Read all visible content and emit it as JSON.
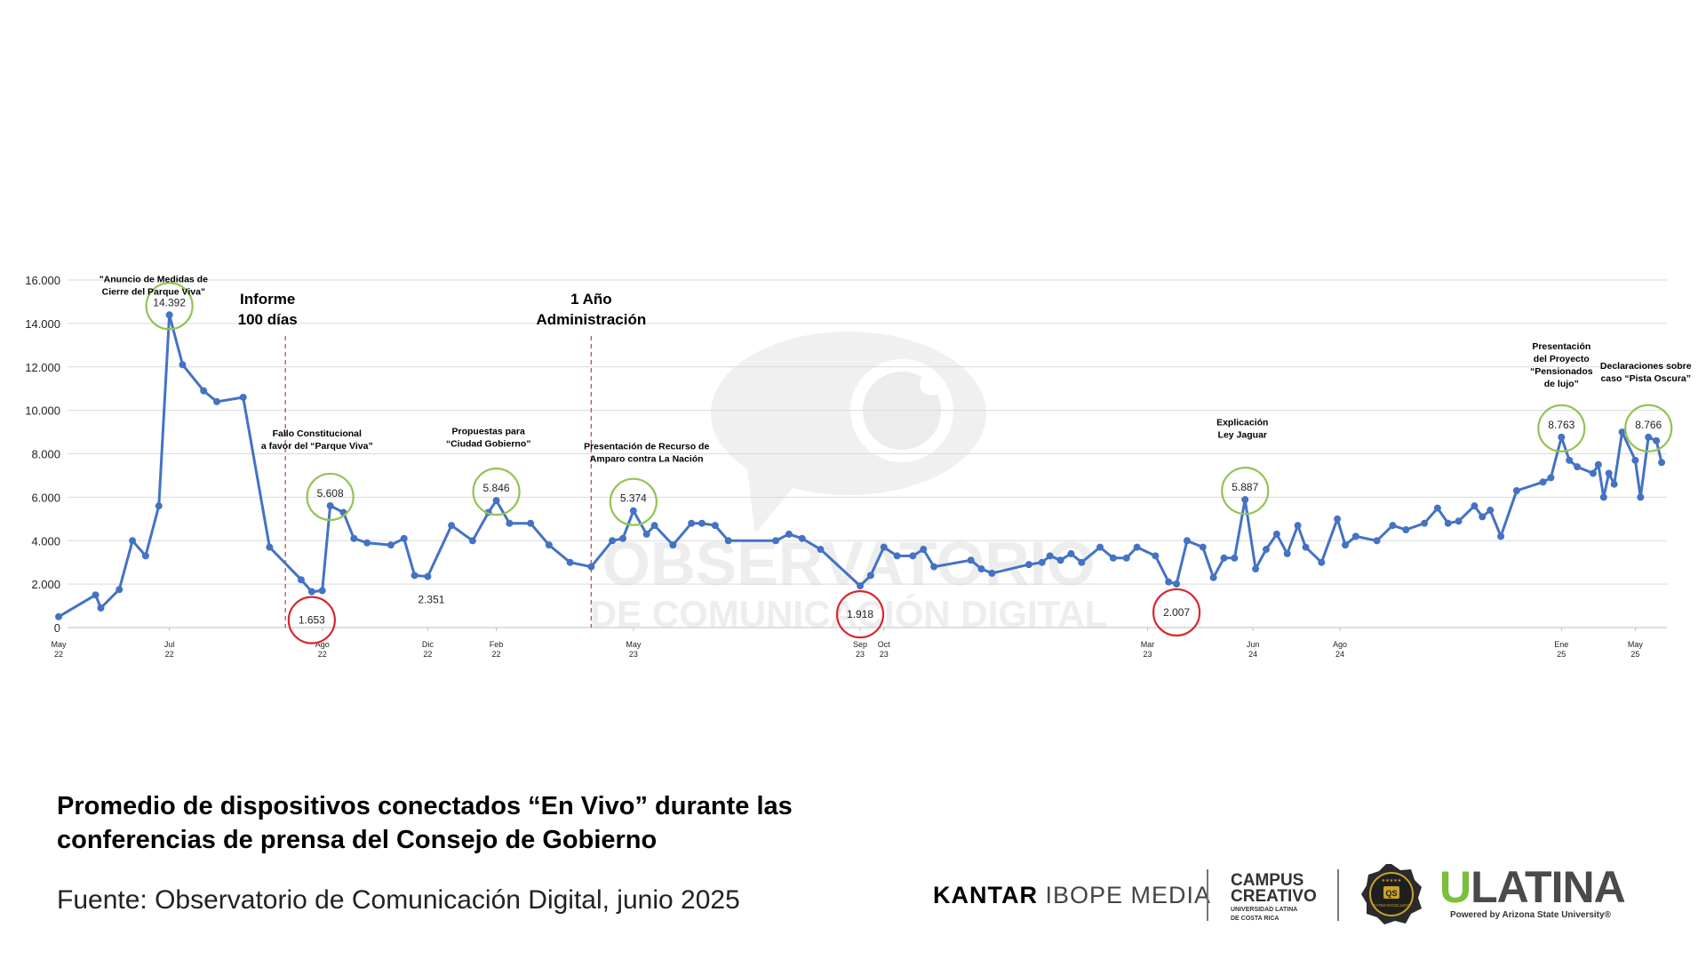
{
  "chart_data": {
    "type": "line",
    "y_ticks": [
      "0",
      "2.000",
      "4.000",
      "6.000",
      "8.000",
      "10.000",
      "12.000",
      "14.000",
      "16.000"
    ],
    "ylim": [
      0,
      16000
    ],
    "grid": true,
    "line_color": "#4472c4",
    "series": [
      {
        "values": [
          [
            0,
            500
          ],
          [
            1.4,
            1500
          ],
          [
            1.6,
            900
          ],
          [
            2.3,
            1750
          ],
          [
            2.8,
            4000
          ],
          [
            3.3,
            3300
          ],
          [
            3.8,
            5600
          ],
          [
            4.2,
            14392
          ],
          [
            4.7,
            12100
          ],
          [
            5.5,
            10900
          ],
          [
            6.0,
            10400
          ],
          [
            7.0,
            10600
          ],
          [
            8.0,
            3700
          ],
          [
            9.2,
            2200
          ],
          [
            9.6,
            1653
          ],
          [
            10.0,
            1700
          ],
          [
            10.3,
            5608
          ],
          [
            10.8,
            5300
          ],
          [
            11.2,
            4100
          ],
          [
            11.7,
            3900
          ],
          [
            12.6,
            3800
          ],
          [
            13.1,
            4100
          ],
          [
            13.5,
            2400
          ],
          [
            14.0,
            2351
          ],
          [
            14.9,
            4700
          ],
          [
            15.7,
            4000
          ],
          [
            16.3,
            5300
          ],
          [
            16.6,
            5846
          ],
          [
            17.1,
            4800
          ],
          [
            17.9,
            4800
          ],
          [
            18.6,
            3800
          ],
          [
            19.4,
            3000
          ],
          [
            20.2,
            2800
          ],
          [
            21.0,
            4000
          ],
          [
            21.4,
            4100
          ],
          [
            21.8,
            5374
          ],
          [
            22.3,
            4300
          ],
          [
            22.6,
            4700
          ],
          [
            23.3,
            3800
          ],
          [
            24.0,
            4800
          ],
          [
            24.4,
            4800
          ],
          [
            24.9,
            4700
          ],
          [
            25.4,
            4000
          ],
          [
            27.2,
            4000
          ],
          [
            27.7,
            4300
          ],
          [
            28.2,
            4100
          ],
          [
            28.9,
            3600
          ],
          [
            30.4,
            1918
          ],
          [
            30.8,
            2400
          ],
          [
            31.3,
            3700
          ],
          [
            31.8,
            3300
          ],
          [
            32.4,
            3300
          ],
          [
            32.8,
            3600
          ],
          [
            33.2,
            2800
          ],
          [
            34.6,
            3100
          ],
          [
            35.0,
            2700
          ],
          [
            35.4,
            2500
          ],
          [
            36.8,
            2900
          ],
          [
            37.3,
            3000
          ],
          [
            37.6,
            3300
          ],
          [
            38.0,
            3100
          ],
          [
            38.4,
            3400
          ],
          [
            38.8,
            3000
          ],
          [
            39.5,
            3700
          ],
          [
            40.0,
            3200
          ],
          [
            40.5,
            3200
          ],
          [
            40.9,
            3700
          ],
          [
            41.6,
            3300
          ],
          [
            42.1,
            2100
          ],
          [
            42.4,
            2007
          ],
          [
            42.8,
            4000
          ],
          [
            43.4,
            3700
          ],
          [
            43.8,
            2300
          ],
          [
            44.2,
            3200
          ],
          [
            44.6,
            3200
          ],
          [
            45.0,
            5887
          ],
          [
            45.4,
            2700
          ],
          [
            45.8,
            3600
          ],
          [
            46.2,
            4300
          ],
          [
            46.6,
            3400
          ],
          [
            47.0,
            4700
          ],
          [
            47.3,
            3700
          ],
          [
            47.9,
            3000
          ],
          [
            48.5,
            5000
          ],
          [
            48.8,
            3800
          ],
          [
            49.2,
            4200
          ],
          [
            50.0,
            4000
          ],
          [
            50.6,
            4700
          ],
          [
            51.1,
            4500
          ],
          [
            51.8,
            4800
          ],
          [
            52.3,
            5500
          ],
          [
            52.7,
            4800
          ],
          [
            53.1,
            4900
          ],
          [
            53.7,
            5600
          ],
          [
            54.0,
            5100
          ],
          [
            54.3,
            5400
          ],
          [
            54.7,
            4200
          ],
          [
            55.3,
            6300
          ],
          [
            56.3,
            6700
          ],
          [
            56.6,
            6900
          ],
          [
            57.0,
            8763
          ],
          [
            57.3,
            7700
          ],
          [
            57.6,
            7400
          ],
          [
            58.2,
            7100
          ],
          [
            58.4,
            7500
          ],
          [
            58.6,
            6000
          ],
          [
            58.8,
            7100
          ],
          [
            59.0,
            6600
          ],
          [
            59.3,
            9000
          ],
          [
            59.8,
            7700
          ],
          [
            60.0,
            6000
          ],
          [
            60.3,
            8766
          ],
          [
            60.6,
            8600
          ],
          [
            60.8,
            7600
          ]
        ]
      }
    ],
    "x_ticks": [
      {
        "pos": 0,
        "month": "May",
        "year": "22"
      },
      {
        "pos": 4.2,
        "month": "Jul",
        "year": "22"
      },
      {
        "pos": 10.0,
        "month": "Ago",
        "year": "22"
      },
      {
        "pos": 14.0,
        "month": "Dic",
        "year": "22"
      },
      {
        "pos": 16.6,
        "month": "Feb",
        "year": "22"
      },
      {
        "pos": 21.8,
        "month": "May",
        "year": "23"
      },
      {
        "pos": 30.4,
        "month": "Sep",
        "year": "23"
      },
      {
        "pos": 31.3,
        "month": "Oct",
        "year": "23"
      },
      {
        "pos": 41.3,
        "month": "Mar",
        "year": "23"
      },
      {
        "pos": 45.3,
        "month": "Jun",
        "year": "24"
      },
      {
        "pos": 48.6,
        "month": "Ago",
        "year": "24"
      },
      {
        "pos": 57.0,
        "month": "Ene",
        "year": "25"
      },
      {
        "pos": 59.8,
        "month": "May",
        "year": "25"
      }
    ],
    "highlights": [
      {
        "x": 4.2,
        "y": 14392,
        "label": "14.392",
        "kind": "high"
      },
      {
        "x": 10.3,
        "y": 5608,
        "label": "5.608",
        "kind": "high"
      },
      {
        "x": 16.6,
        "y": 5846,
        "label": "5.846",
        "kind": "high"
      },
      {
        "x": 21.8,
        "y": 5374,
        "label": "5.374",
        "kind": "high"
      },
      {
        "x": 45.0,
        "y": 5887,
        "label": "5.887",
        "kind": "high"
      },
      {
        "x": 57.0,
        "y": 8763,
        "label": "8.763",
        "kind": "high"
      },
      {
        "x": 60.3,
        "y": 8766,
        "label": "8.766",
        "kind": "high"
      },
      {
        "x": 9.6,
        "y": 1653,
        "label": "1.653",
        "kind": "low"
      },
      {
        "x": 30.4,
        "y": 1918,
        "label": "1.918",
        "kind": "low"
      },
      {
        "x": 42.4,
        "y": 2007,
        "label": "2.007",
        "kind": "low"
      }
    ],
    "plain_labels": [
      {
        "x": 14.0,
        "y": 2351,
        "label": "2.351"
      }
    ],
    "milestones": [
      {
        "x": 8.6,
        "lines": [
          "Informe",
          "100 días"
        ]
      },
      {
        "x": 20.2,
        "lines": [
          "1 Año",
          "Administración"
        ]
      }
    ],
    "annotations": [
      {
        "x": 3.6,
        "y": 15900,
        "lines": [
          "\"Anuncio de Medidas de",
          "Cierre del Parque Viva\""
        ]
      },
      {
        "x": 9.8,
        "y": 8800,
        "lines": [
          "Fallo Constitucional",
          "a favor del “Parque Viva”"
        ]
      },
      {
        "x": 16.3,
        "y": 8900,
        "lines": [
          "Propuestas  para",
          "“Ciudad Gobierno”"
        ]
      },
      {
        "x": 22.3,
        "y": 8200,
        "lines": [
          "Presentación de Recurso de",
          "Amparo contra La Nación"
        ]
      },
      {
        "x": 44.9,
        "y": 9300,
        "lines": [
          "Explicación",
          "Ley Jaguar"
        ]
      },
      {
        "x": 57.0,
        "y": 12800,
        "lines": [
          "Presentación",
          "del Proyecto",
          "“Pensionados",
          "de lujo”"
        ]
      },
      {
        "x": 60.2,
        "y": 11900,
        "lines": [
          "Declaraciones sobre",
          "caso “Pista Oscura”"
        ]
      }
    ],
    "watermark": {
      "line1": "OBSERVATORIO",
      "line2": "DE COMUNICACIÓN DIGITAL"
    },
    "colors": {
      "high_circle": "#92c353",
      "low_circle": "#d9262f",
      "milestone_line": "#c0504d",
      "grid": "#d9d9d9"
    }
  },
  "caption": {
    "line1": "Promedio de dispositivos conectados “En Vivo” durante las",
    "line2": "conferencias de prensa del Consejo de Gobierno"
  },
  "source": "Fuente: Observatorio de Comunicación Digital, junio 2025",
  "logos": {
    "kantar_bold": "KANTAR",
    "kantar_rest": "IBOPE MEDIA",
    "campus_line1": "CAMPUS",
    "campus_line2": "CREATIVO",
    "campus_sub1": "UNIVERSIDAD LATINA",
    "campus_sub2": "DE COSTA RICA",
    "badge_text": "QS",
    "badge_sub": "RATED EXCELLENT",
    "ulatina_u": "U",
    "ulatina_rest": "LATINA",
    "ulatina_powered": "Powered by Arizona State University®"
  }
}
